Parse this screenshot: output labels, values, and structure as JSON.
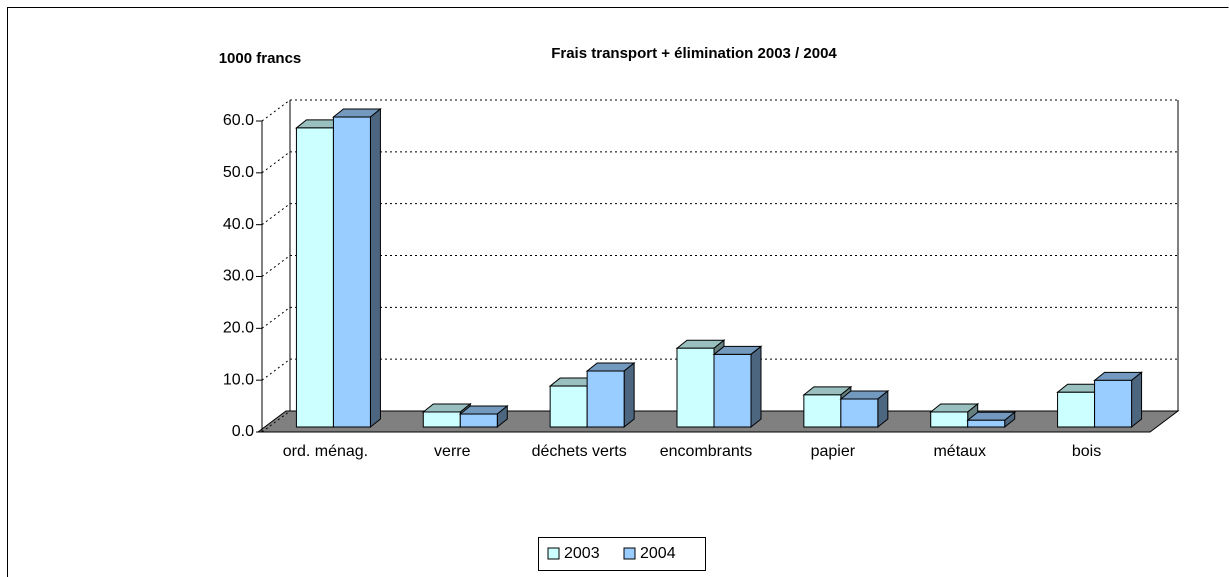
{
  "chart_data": {
    "type": "bar3d",
    "title": "Frais transport + élimination 2003 / 2004",
    "y_label": "1000 francs",
    "categories": [
      "ord. ménag.",
      "verre",
      "déchets verts",
      "encombrants",
      "papier",
      "métaux",
      "bois"
    ],
    "series": [
      {
        "name": "2003",
        "color": "#ccffff",
        "values": [
          57.7,
          2.9,
          7.9,
          15.2,
          6.2,
          2.9,
          6.7
        ]
      },
      {
        "name": "2004",
        "color": "#99ccff",
        "values": [
          59.8,
          2.5,
          10.8,
          14.0,
          5.4,
          1.3,
          9.0
        ]
      }
    ],
    "ylim": [
      0,
      60
    ],
    "yticks": [
      {
        "value": 0,
        "label": "0.0"
      },
      {
        "value": 10,
        "label": "10.0"
      },
      {
        "value": 20,
        "label": "20.0"
      },
      {
        "value": 30,
        "label": "30.0"
      },
      {
        "value": 40,
        "label": "40.0"
      },
      {
        "value": 50,
        "label": "50.0"
      },
      {
        "value": 60,
        "label": "60.0"
      }
    ],
    "grid": true,
    "legend": "bottom"
  }
}
